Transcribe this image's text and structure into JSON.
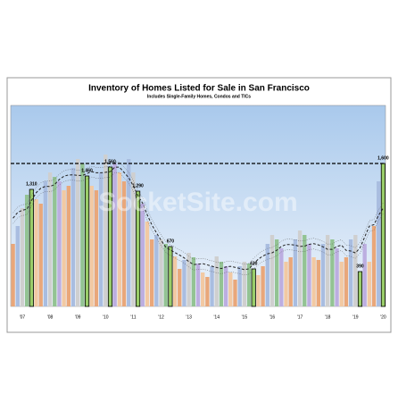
{
  "chart_data": {
    "type": "bar",
    "title": "Inventory of Homes Listed for Sale in San Francisco",
    "subtitle": "Includes Single-Family Homes, Condos and TICs",
    "watermark": "SocketSite.com",
    "categories": [
      null,
      null,
      "'07",
      null,
      null,
      null,
      null,
      null,
      "'08",
      null,
      null,
      null,
      null,
      null,
      "'09",
      null,
      null,
      null,
      null,
      null,
      "'10",
      null,
      null,
      null,
      null,
      null,
      "'11",
      null,
      null,
      null,
      null,
      null,
      "'12",
      null,
      null,
      null,
      null,
      null,
      "'13",
      null,
      null,
      null,
      null,
      null,
      "'14",
      null,
      null,
      null,
      null,
      null,
      "'15",
      null,
      null,
      null,
      null,
      null,
      "'16",
      null,
      null,
      null,
      null,
      null,
      "'17",
      null,
      null,
      null,
      null,
      null,
      "'18",
      null,
      null,
      null,
      null,
      null,
      "'19",
      null,
      null,
      null,
      null,
      null,
      "'20"
    ],
    "values": [
      700,
      900,
      1100,
      1250,
      1310,
      1200,
      1150,
      1400,
      1500,
      1450,
      1400,
      1300,
      1350,
      1550,
      1650,
      1600,
      1460,
      1350,
      1300,
      1500,
      1700,
      1560,
      1600,
      1500,
      1400,
      1650,
      1500,
      1290,
      1150,
      950,
      750,
      800,
      750,
      700,
      670,
      560,
      420,
      520,
      600,
      550,
      480,
      380,
      330,
      450,
      560,
      500,
      450,
      380,
      300,
      450,
      500,
      480,
      420,
      350,
      450,
      700,
      800,
      750,
      650,
      500,
      550,
      750,
      850,
      800,
      700,
      550,
      520,
      700,
      800,
      750,
      650,
      500,
      550,
      750,
      800,
      390,
      700,
      500,
      900,
      1400,
      1600
    ],
    "value_labels": [
      null,
      null,
      null,
      null,
      "1,310",
      null,
      null,
      null,
      null,
      null,
      null,
      null,
      null,
      null,
      null,
      null,
      "1,460",
      null,
      null,
      null,
      null,
      "1,560",
      null,
      null,
      null,
      null,
      null,
      "1,290",
      null,
      null,
      null,
      null,
      null,
      null,
      "670",
      null,
      null,
      null,
      null,
      null,
      null,
      null,
      null,
      null,
      null,
      null,
      null,
      null,
      null,
      null,
      null,
      null,
      "420",
      null,
      null,
      null,
      null,
      null,
      null,
      null,
      null,
      null,
      null,
      null,
      null,
      null,
      null,
      null,
      null,
      null,
      null,
      null,
      null,
      null,
      null,
      "390",
      null,
      null,
      null,
      null,
      "1,600"
    ],
    "colors": [
      "#e9a77a",
      "#a9bde0",
      "#cfcfcf",
      "#93c393",
      "#bcaee0",
      "#f2c9a3"
    ],
    "ylim": [
      0,
      2250
    ],
    "reference_value": 1600
  }
}
